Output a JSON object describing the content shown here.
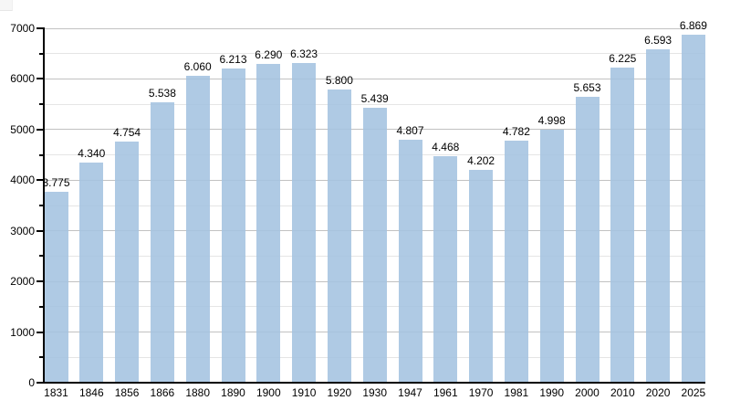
{
  "chart_data": {
    "type": "bar",
    "title": "",
    "xlabel": "",
    "ylabel": "",
    "categories": [
      "1831",
      "1846",
      "1856",
      "1866",
      "1880",
      "1890",
      "1900",
      "1910",
      "1920",
      "1930",
      "1947",
      "1961",
      "1970",
      "1981",
      "1990",
      "2000",
      "2010",
      "2020",
      "2025"
    ],
    "values": [
      3775,
      4340,
      4754,
      5538,
      6060,
      6213,
      6290,
      6323,
      5800,
      5439,
      4807,
      4468,
      4202,
      4782,
      4998,
      5653,
      6225,
      6593,
      6869
    ],
    "value_labels": [
      "3.775",
      "4.340",
      "4.754",
      "5.538",
      "6.060",
      "6.213",
      "6.290",
      "6.323",
      "5.800",
      "5.439",
      "4.807",
      "4.468",
      "4.202",
      "4.782",
      "4.998",
      "5.653",
      "6.225",
      "6.593",
      "6.869"
    ],
    "ylim": [
      0,
      7000
    ],
    "y_major_step": 1000,
    "y_minor_step": 500,
    "y_tick_labels": [
      "0",
      "1000",
      "2000",
      "3000",
      "4000",
      "5000",
      "6000",
      "7000"
    ],
    "grid": "major-and-minor-horizontal",
    "legend": "none",
    "bar_color": "#b0cbe4",
    "major_grid_color": "#c2c2c2",
    "minor_grid_color": "#e5e5e5",
    "axis_color": "#000000",
    "text_color": "#000000"
  }
}
